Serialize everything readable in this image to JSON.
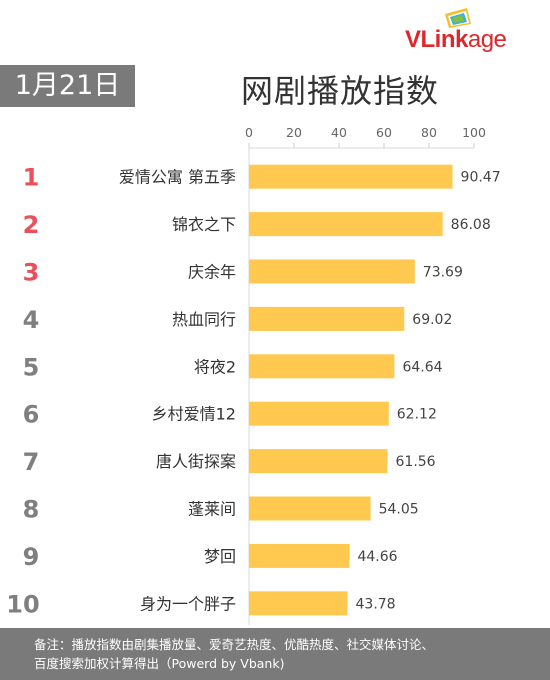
{
  "logo": {
    "brand_v": "VLink",
    "brand_rest": "age"
  },
  "header": {
    "date": "1月21日",
    "title": "网剧播放指数"
  },
  "colors": {
    "bar": "#ffc94f",
    "rank_top": "#e9505a",
    "rank_other": "#7f7f7f",
    "footer_bg": "#7a7a7a",
    "logo_red": "#e0262d"
  },
  "chart_data": {
    "type": "bar",
    "orientation": "horizontal",
    "categories": [
      "爱情公寓 第五季",
      "锦衣之下",
      "庆余年",
      "热血同行",
      "将夜2",
      "乡村爱情12",
      "唐人街探案",
      "蓬莱间",
      "梦回",
      "身为一个胖子"
    ],
    "ranks": [
      "1",
      "2",
      "3",
      "4",
      "5",
      "6",
      "7",
      "8",
      "9",
      "10"
    ],
    "values": [
      90.47,
      86.08,
      73.69,
      69.02,
      64.64,
      62.12,
      61.56,
      54.05,
      44.66,
      43.78
    ],
    "value_labels": [
      "90.47",
      "86.08",
      "73.69",
      "69.02",
      "64.64",
      "62.12",
      "61.56",
      "54.05",
      "44.66",
      "43.78"
    ],
    "xlim": [
      0,
      100
    ],
    "x_ticks": [
      "0",
      "20",
      "40",
      "60",
      "80",
      "100"
    ],
    "axis_position": "top",
    "grid": false,
    "legend": "none"
  },
  "footer": {
    "line1": "备注：播放指数由剧集播放量、爱奇艺热度、优酷热度、社交媒体讨论、",
    "line2": "百度搜索加权计算得出（Powerd by Vbank)"
  }
}
